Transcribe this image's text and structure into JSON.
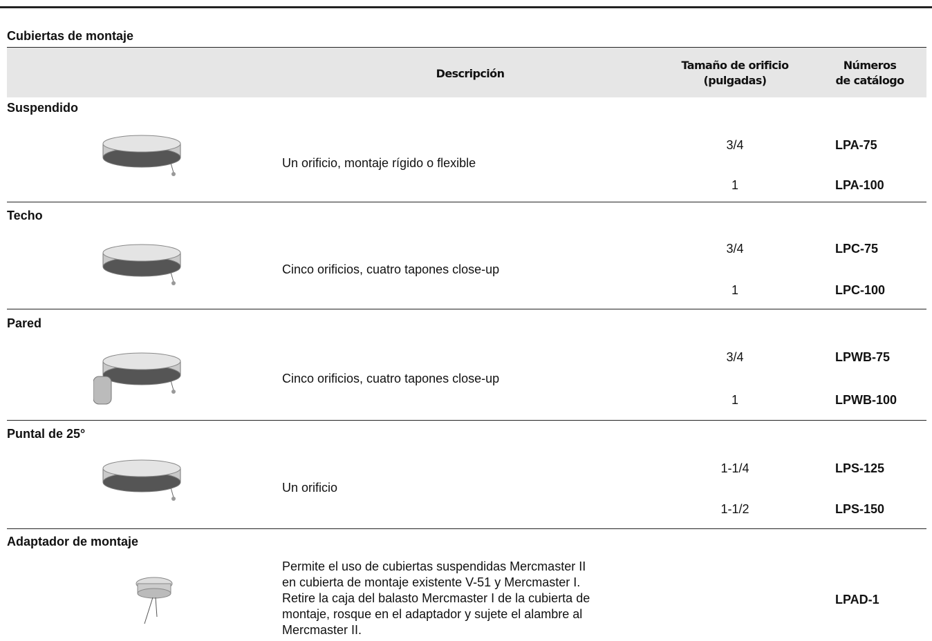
{
  "title": "Cubiertas de montaje",
  "header": {
    "description": "Descripción",
    "size": [
      "Tamaño de orificio",
      "(pulgadas)"
    ],
    "catalog": [
      "Números",
      "de catálogo"
    ]
  },
  "sections": [
    {
      "name": "Suspendido",
      "description": [
        "Un orificio, montaje rígido o flexible"
      ],
      "rows": [
        {
          "size": "3/4",
          "catalog": "LPA-75"
        },
        {
          "size": "1",
          "catalog": "LPA-100"
        }
      ]
    },
    {
      "name": "Techo",
      "description": [
        "Cinco orificios, cuatro tapones close-up"
      ],
      "rows": [
        {
          "size": "3/4",
          "catalog": "LPC-75"
        },
        {
          "size": "1",
          "catalog": "LPC-100"
        }
      ]
    },
    {
      "name": "Pared",
      "description": [
        "Cinco orificios, cuatro tapones close-up"
      ],
      "rows": [
        {
          "size": "3/4",
          "catalog": "LPWB-75"
        },
        {
          "size": "1",
          "catalog": "LPWB-100"
        }
      ]
    },
    {
      "name": "Puntal de 25°",
      "description": [
        "Un orificio"
      ],
      "rows": [
        {
          "size": "1-1/4",
          "catalog": "LPS-125"
        },
        {
          "size": "1-1/2",
          "catalog": "LPS-150"
        }
      ]
    },
    {
      "name": "Adaptador de montaje",
      "description": [
        "Permite el uso de cubiertas suspendidas Mercmaster II",
        "en cubierta de montaje existente V-51 y Mercmaster I.",
        "Retire la caja del balasto Mercmaster I de la cubierta de",
        "montaje, rosque en el adaptador y sujete el alambre al",
        "Mercmaster II."
      ],
      "rows": [
        {
          "catalog": "LPAD-1"
        }
      ]
    }
  ]
}
